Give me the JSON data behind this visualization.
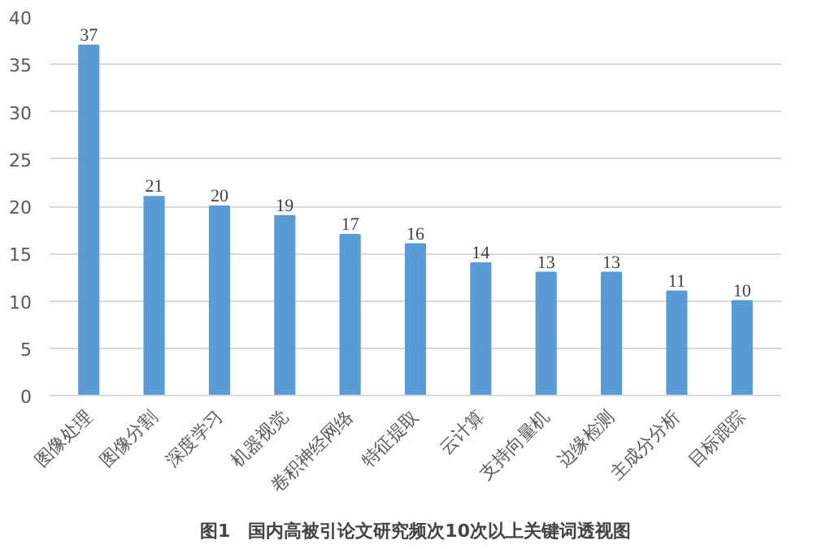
{
  "chart_data": {
    "type": "bar",
    "title": "图1　国内高被引论文研究频次10次以上关键词透视图",
    "categories": [
      "图像处理",
      "图像分割",
      "深度学习",
      "机器视觉",
      "卷积神经网络",
      "特征提取",
      "云计算",
      "支持向量机",
      "边缘检测",
      "主成分分析",
      "目标跟踪"
    ],
    "values": [
      37,
      21,
      20,
      19,
      17,
      16,
      14,
      13,
      13,
      11,
      10
    ],
    "color": "#5b9bd5",
    "ylim": [
      0,
      40
    ],
    "yticks": [
      0,
      5,
      10,
      15,
      20,
      25,
      30,
      35,
      40
    ],
    "grid": "y",
    "data_labels": true
  }
}
